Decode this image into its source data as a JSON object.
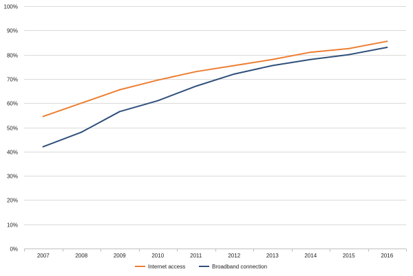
{
  "chart_data": {
    "type": "line",
    "title": "",
    "xlabel": "",
    "ylabel": "",
    "categories": [
      "2007",
      "2008",
      "2009",
      "2010",
      "2011",
      "2012",
      "2013",
      "2014",
      "2015",
      "2016"
    ],
    "y_ticks": [
      "0%",
      "10%",
      "20%",
      "30%",
      "40%",
      "50%",
      "60%",
      "70%",
      "80%",
      "90%",
      "100%"
    ],
    "ylim": [
      0,
      100
    ],
    "y_unit": "%",
    "grid": "horizontal",
    "legend_position": "bottom",
    "series": [
      {
        "name": "Internet access",
        "color": "#ED7D31",
        "values": [
          54.5,
          60,
          65.5,
          69.5,
          73,
          75.5,
          78,
          81,
          82.5,
          85.5
        ]
      },
      {
        "name": "Broadband connection",
        "color": "#2F4F7A",
        "values": [
          42,
          48,
          56.5,
          61,
          67,
          72,
          75.5,
          78,
          80,
          83
        ]
      }
    ]
  }
}
